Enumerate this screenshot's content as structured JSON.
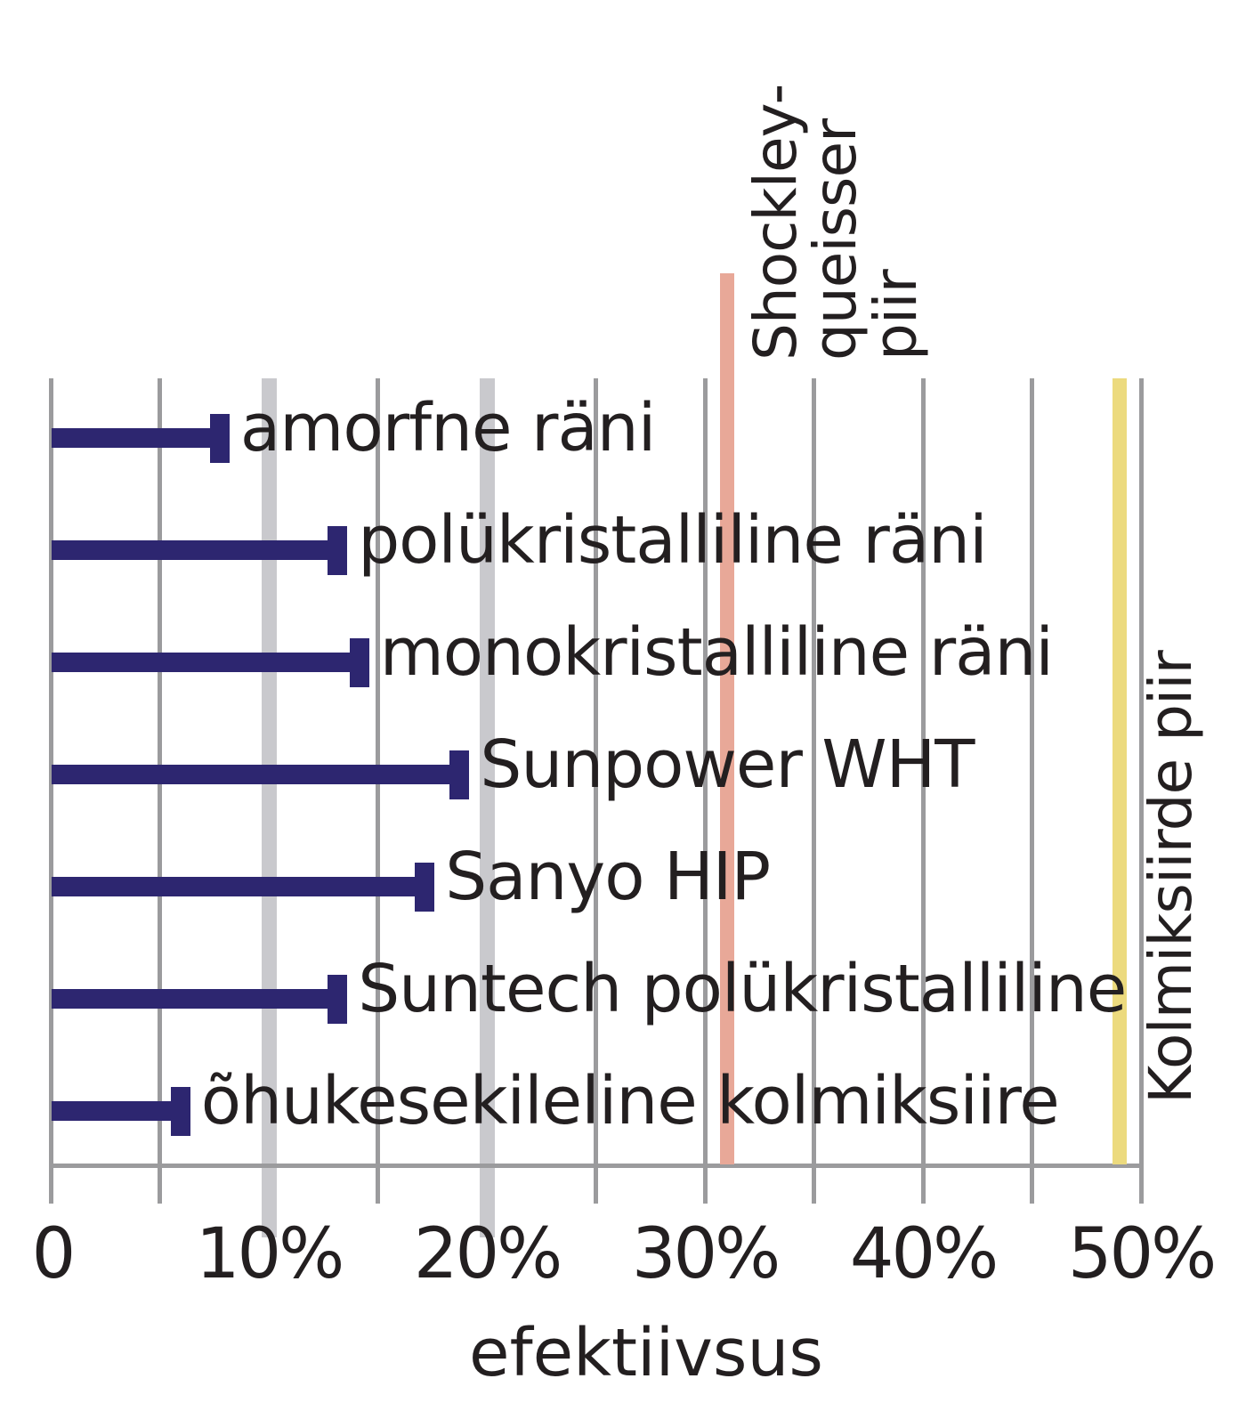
{
  "chart_data": {
    "type": "bar",
    "orientation": "horizontal",
    "title": "",
    "xlabel": "efektiivsus",
    "ylabel": "",
    "xlim": [
      0,
      50
    ],
    "x_ticks": [
      "0",
      "10%",
      "20%",
      "30%",
      "40%",
      "50%"
    ],
    "grid": true,
    "grid_step_percent": 5,
    "categories": [
      "amorfne räni",
      "polükristalliline räni",
      "monokristalliline räni",
      "Sunpower WHT",
      "Sanyo HIP",
      "Suntech polükristalliline",
      "õhukesekileline  kolmiksiire"
    ],
    "values": [
      8.2,
      13.6,
      14.6,
      19.2,
      17.6,
      13.6,
      6.4
    ],
    "reference_lines": [
      {
        "label": "Shockley-queisser piir",
        "lines": [
          "Shockley-",
          "queisser",
          "piir"
        ],
        "value": 31,
        "color": "#e8a898"
      },
      {
        "label": "Kolmiksiirde piir",
        "value": 49,
        "color": "#ecda7e"
      }
    ],
    "colors": {
      "bar": "#2d2670",
      "grid": "#9b9b9d",
      "grid_light": "#c9c9cd",
      "text": "#231f20"
    }
  }
}
